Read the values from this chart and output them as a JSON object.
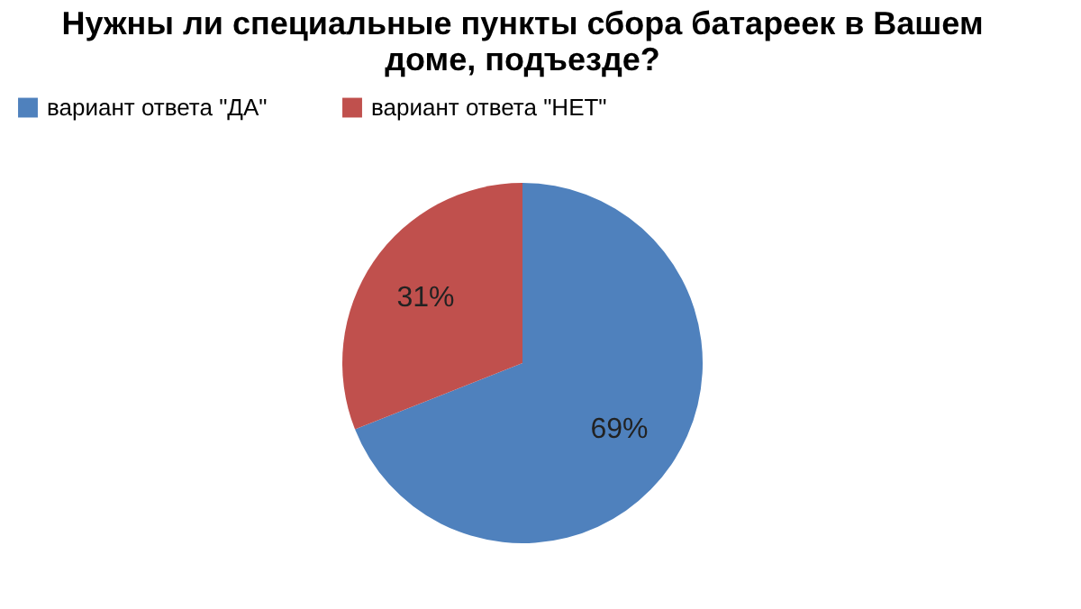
{
  "chart_data": {
    "type": "pie",
    "title": "Нужны ли специальные пункты сбора батареек в Вашем доме, подъезде?",
    "categories": [
      "вариант ответа \"ДА\"",
      "вариант ответа \"НЕТ\""
    ],
    "values": [
      69,
      31
    ],
    "colors": [
      "#4f81bd",
      "#c0504d"
    ],
    "value_labels": [
      "69%",
      "31%"
    ],
    "legend": "top"
  }
}
